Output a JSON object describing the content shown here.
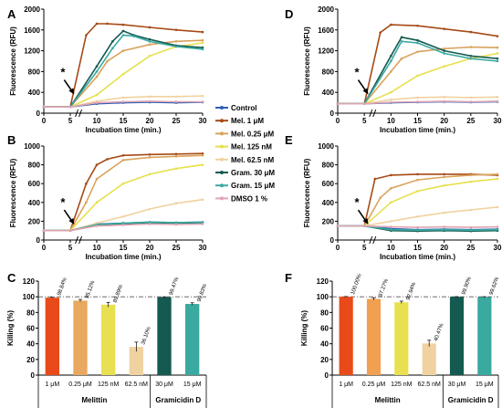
{
  "legend": [
    {
      "name": "Control",
      "color": "#2f5fb3"
    },
    {
      "name": "Mel. 1 μM",
      "color": "#a64a16"
    },
    {
      "name": "Mel. 0.25 μM",
      "color": "#d9a35c"
    },
    {
      "name": "Mel. 125 nM",
      "color": "#e6e04d"
    },
    {
      "name": "Mel. 62.5 nM",
      "color": "#f0d2a0"
    },
    {
      "name": "Gram. 30 μM",
      "color": "#145a50"
    },
    {
      "name": "Gram. 15 μM",
      "color": "#3aa9a0"
    },
    {
      "name": "DMSO 1 %",
      "color": "#e0a5b4"
    }
  ],
  "chart_data": [
    {
      "panel": "A",
      "type": "line",
      "xlabel": "Incubation time (min.)",
      "ylabel": "Fluorescence (RFU)",
      "xlim": [
        0,
        30
      ],
      "ylim": [
        0,
        2000
      ],
      "xticks": [
        "0",
        "5",
        "10",
        "15",
        "20",
        "25",
        "30"
      ],
      "yticks": [
        "0",
        "400",
        "800",
        "1200",
        "1600",
        "2000"
      ],
      "annotation": "*",
      "series": [
        {
          "name": "Control",
          "x": [
            0,
            5,
            10,
            15,
            20,
            25,
            30
          ],
          "y": [
            120,
            120,
            180,
            200,
            210,
            200,
            210
          ]
        },
        {
          "name": "Mel. 1 μM",
          "x": [
            0,
            5,
            8,
            10,
            12,
            15,
            20,
            25,
            30
          ],
          "y": [
            120,
            120,
            1500,
            1720,
            1720,
            1700,
            1650,
            1600,
            1560
          ]
        },
        {
          "name": "Mel. 0.25 μM",
          "x": [
            0,
            5,
            10,
            12,
            15,
            20,
            25,
            30
          ],
          "y": [
            120,
            120,
            700,
            1000,
            1200,
            1320,
            1380,
            1400
          ]
        },
        {
          "name": "Mel. 125 nM",
          "x": [
            0,
            5,
            10,
            15,
            20,
            25,
            30
          ],
          "y": [
            120,
            120,
            350,
            750,
            1100,
            1280,
            1350
          ]
        },
        {
          "name": "Mel. 62.5 nM",
          "x": [
            0,
            5,
            10,
            15,
            20,
            25,
            30
          ],
          "y": [
            120,
            120,
            230,
            300,
            320,
            320,
            330
          ]
        },
        {
          "name": "Gram. 30 μM",
          "x": [
            0,
            5,
            10,
            13,
            15,
            17,
            20,
            25,
            30
          ],
          "y": [
            120,
            120,
            900,
            1380,
            1580,
            1500,
            1420,
            1300,
            1260
          ]
        },
        {
          "name": "Gram. 15 μM",
          "x": [
            0,
            5,
            10,
            13,
            15,
            17,
            20,
            25,
            30
          ],
          "y": [
            120,
            120,
            800,
            1250,
            1500,
            1480,
            1380,
            1280,
            1230
          ]
        },
        {
          "name": "DMSO 1 %",
          "x": [
            0,
            5,
            10,
            15,
            20,
            25,
            30
          ],
          "y": [
            120,
            120,
            200,
            220,
            230,
            220,
            220
          ]
        }
      ]
    },
    {
      "panel": "D",
      "type": "line",
      "xlabel": "Incubation time (min.)",
      "ylabel": "Fluorescence (RFU)",
      "xlim": [
        0,
        30
      ],
      "ylim": [
        0,
        2000
      ],
      "xticks": [
        "0",
        "5",
        "10",
        "15",
        "20",
        "25",
        "30"
      ],
      "yticks": [
        "0",
        "400",
        "800",
        "1200",
        "1600",
        "2000"
      ],
      "annotation": "*",
      "series": [
        {
          "name": "Control",
          "x": [
            0,
            5,
            10,
            15,
            20,
            25,
            30
          ],
          "y": [
            180,
            180,
            200,
            210,
            220,
            210,
            220
          ]
        },
        {
          "name": "Mel. 1 μM",
          "x": [
            0,
            5,
            8,
            10,
            15,
            20,
            25,
            30
          ],
          "y": [
            180,
            180,
            1550,
            1700,
            1680,
            1620,
            1560,
            1480
          ]
        },
        {
          "name": "Mel. 0.25 μM",
          "x": [
            0,
            5,
            10,
            12,
            15,
            20,
            25,
            30
          ],
          "y": [
            180,
            180,
            800,
            1050,
            1180,
            1240,
            1270,
            1260
          ]
        },
        {
          "name": "Mel. 125 nM",
          "x": [
            0,
            5,
            10,
            15,
            20,
            25,
            30
          ],
          "y": [
            180,
            180,
            400,
            720,
            900,
            1050,
            1150
          ]
        },
        {
          "name": "Mel. 62.5 nM",
          "x": [
            0,
            5,
            10,
            15,
            20,
            25,
            30
          ],
          "y": [
            180,
            180,
            260,
            300,
            310,
            300,
            310
          ]
        },
        {
          "name": "Gram. 30 μM",
          "x": [
            0,
            5,
            10,
            12,
            15,
            20,
            25,
            30
          ],
          "y": [
            180,
            180,
            1100,
            1460,
            1400,
            1200,
            1100,
            1050
          ]
        },
        {
          "name": "Gram. 15 μM",
          "x": [
            0,
            5,
            10,
            12,
            15,
            20,
            25,
            30
          ],
          "y": [
            180,
            180,
            1000,
            1380,
            1350,
            1150,
            1050,
            1000
          ]
        },
        {
          "name": "DMSO 1 %",
          "x": [
            0,
            5,
            10,
            15,
            20,
            25,
            30
          ],
          "y": [
            180,
            180,
            210,
            220,
            230,
            220,
            230
          ]
        }
      ]
    },
    {
      "panel": "B",
      "type": "line",
      "xlabel": "Incubation time (min.)",
      "ylabel": "Fluorescence (RFU)",
      "xlim": [
        0,
        30
      ],
      "ylim": [
        0,
        1000
      ],
      "xticks": [
        "0",
        "5",
        "10",
        "15",
        "20",
        "25",
        "30"
      ],
      "yticks": [
        "0",
        "200",
        "400",
        "600",
        "800",
        "1000"
      ],
      "annotation": "*",
      "series": [
        {
          "name": "Control",
          "x": [
            0,
            5,
            10,
            15,
            20,
            25,
            30
          ],
          "y": [
            100,
            100,
            170,
            180,
            190,
            185,
            190
          ]
        },
        {
          "name": "Mel. 1 μM",
          "x": [
            0,
            5,
            8,
            10,
            12,
            15,
            20,
            25,
            30
          ],
          "y": [
            100,
            100,
            600,
            800,
            860,
            900,
            910,
            915,
            920
          ]
        },
        {
          "name": "Mel. 0.25 μM",
          "x": [
            0,
            5,
            8,
            10,
            15,
            20,
            25,
            30
          ],
          "y": [
            100,
            100,
            400,
            650,
            850,
            880,
            890,
            900
          ]
        },
        {
          "name": "Mel. 125 nM",
          "x": [
            0,
            5,
            10,
            15,
            20,
            25,
            30
          ],
          "y": [
            100,
            100,
            400,
            600,
            700,
            760,
            800
          ]
        },
        {
          "name": "Mel. 62.5 nM",
          "x": [
            0,
            5,
            10,
            15,
            20,
            25,
            30
          ],
          "y": [
            100,
            100,
            180,
            250,
            330,
            390,
            430
          ]
        },
        {
          "name": "Gram. 30 μM",
          "x": [
            0,
            5,
            10,
            15,
            20,
            25,
            30
          ],
          "y": [
            100,
            100,
            160,
            175,
            185,
            180,
            185
          ]
        },
        {
          "name": "Gram. 15 μM",
          "x": [
            0,
            5,
            10,
            15,
            20,
            25,
            30
          ],
          "y": [
            100,
            100,
            165,
            180,
            190,
            185,
            190
          ]
        },
        {
          "name": "DMSO 1 %",
          "x": [
            0,
            5,
            10,
            15,
            20,
            25,
            30
          ],
          "y": [
            100,
            100,
            150,
            160,
            170,
            165,
            170
          ]
        }
      ]
    },
    {
      "panel": "E",
      "type": "line",
      "xlabel": "Incubation time (min.)",
      "ylabel": "Fluorescence (RFU)",
      "xlim": [
        0,
        30
      ],
      "ylim": [
        0,
        1000
      ],
      "xticks": [
        "0",
        "5",
        "10",
        "15",
        "20",
        "25",
        "30"
      ],
      "yticks": [
        "0",
        "200",
        "400",
        "600",
        "800",
        "1000"
      ],
      "annotation": "*",
      "series": [
        {
          "name": "Control",
          "x": [
            0,
            5,
            10,
            15,
            20,
            25,
            30
          ],
          "y": [
            150,
            150,
            120,
            110,
            115,
            110,
            115
          ]
        },
        {
          "name": "Mel. 1 μM",
          "x": [
            0,
            5,
            7,
            10,
            15,
            20,
            25,
            30
          ],
          "y": [
            150,
            150,
            650,
            690,
            700,
            700,
            700,
            690
          ]
        },
        {
          "name": "Mel. 0.25 μM",
          "x": [
            0,
            5,
            8,
            10,
            15,
            20,
            25,
            30
          ],
          "y": [
            150,
            150,
            450,
            550,
            640,
            670,
            690,
            700
          ]
        },
        {
          "name": "Mel. 125 nM",
          "x": [
            0,
            5,
            10,
            15,
            20,
            25,
            30
          ],
          "y": [
            150,
            150,
            400,
            520,
            580,
            620,
            650
          ]
        },
        {
          "name": "Mel. 62.5 nM",
          "x": [
            0,
            5,
            10,
            15,
            20,
            25,
            30
          ],
          "y": [
            150,
            150,
            200,
            250,
            290,
            320,
            350
          ]
        },
        {
          "name": "Gram. 30 μM",
          "x": [
            0,
            5,
            10,
            15,
            20,
            25,
            30
          ],
          "y": [
            150,
            150,
            100,
            95,
            100,
            95,
            100
          ]
        },
        {
          "name": "Gram. 15 μM",
          "x": [
            0,
            5,
            10,
            15,
            20,
            25,
            30
          ],
          "y": [
            150,
            150,
            110,
            105,
            110,
            105,
            110
          ]
        },
        {
          "name": "DMSO 1 %",
          "x": [
            0,
            5,
            10,
            15,
            20,
            25,
            30
          ],
          "y": [
            150,
            150,
            140,
            135,
            140,
            135,
            140
          ]
        }
      ]
    },
    {
      "panel": "C",
      "type": "bar",
      "ylabel": "Killing (%)",
      "ylim": [
        0,
        120
      ],
      "yticks": [
        "0",
        "20",
        "40",
        "60",
        "80",
        "100",
        "120"
      ],
      "categories": [
        "1 μM",
        "0.25 μM",
        "125 nM",
        "62.5 nM",
        "30 μM",
        "15 μM"
      ],
      "values": [
        98.84,
        95.12,
        89.89,
        36.1,
        99.47,
        90.83
      ],
      "value_labels": [
        "98.84%",
        "95.12%",
        "89.89%",
        "36.10%",
        "99.47%",
        "90.83%"
      ],
      "errors": [
        0.5,
        1.5,
        3,
        6,
        0.5,
        1.5
      ],
      "colors": [
        "#e84a1a",
        "#e8a860",
        "#e8e050",
        "#f0d2a0",
        "#145a50",
        "#3aa9a0"
      ],
      "groups": [
        {
          "label": "Melittin",
          "from": 0,
          "to": 3
        },
        {
          "label": "Gramicidin D",
          "from": 4,
          "to": 5
        }
      ]
    },
    {
      "panel": "F",
      "type": "bar",
      "ylabel": "Killing (%)",
      "ylim": [
        0,
        120
      ],
      "yticks": [
        "0",
        "20",
        "40",
        "60",
        "80",
        "100",
        "120"
      ],
      "categories": [
        "1 μM",
        "0.25 μM",
        "125 nM",
        "62.5 nM",
        "30 μM",
        "15 μM"
      ],
      "values": [
        100.0,
        97.27,
        92.94,
        40.47,
        99.9,
        99.62
      ],
      "value_labels": [
        "100.00%",
        "97.27%",
        "92.94%",
        "40.47%",
        "99.90%",
        "99.62%"
      ],
      "errors": [
        0.3,
        1.5,
        1.5,
        4,
        0.3,
        0.5
      ],
      "colors": [
        "#e84a1a",
        "#f0a050",
        "#e8e050",
        "#f0d2a0",
        "#145a50",
        "#3aa9a0"
      ],
      "groups": [
        {
          "label": "Melittin",
          "from": 0,
          "to": 3
        },
        {
          "label": "Gramicidin D",
          "from": 4,
          "to": 5
        }
      ]
    }
  ]
}
